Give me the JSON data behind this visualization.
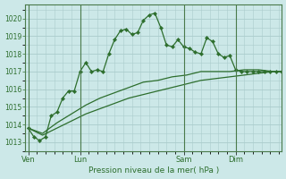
{
  "xlabel": "Pression niveau de la mer( hPa )",
  "bg_color": "#cce8e8",
  "grid_color": "#aacccc",
  "line_color": "#2d6e2d",
  "vline_color": "#4a7a4a",
  "ylim": [
    1012.5,
    1020.8
  ],
  "yticks": [
    1013,
    1014,
    1015,
    1016,
    1017,
    1018,
    1019,
    1020
  ],
  "x_tick_labels": [
    "Ven",
    "Lun",
    "Sam",
    "Dim"
  ],
  "x_tick_positions": [
    0,
    18,
    54,
    72
  ],
  "xlim": [
    -1,
    88
  ],
  "vlines": [
    0,
    18,
    54,
    72
  ],
  "series1_x": [
    0,
    2,
    4,
    6,
    8,
    10,
    12,
    14,
    16,
    18,
    20,
    22,
    24,
    26,
    28,
    30,
    32,
    34,
    36,
    38,
    40,
    42,
    44,
    46,
    48,
    50,
    52,
    54,
    56,
    58,
    60,
    62,
    64,
    66,
    68,
    70,
    72,
    74,
    76,
    78,
    80,
    82,
    84,
    86,
    88
  ],
  "series1_y": [
    1013.8,
    1013.3,
    1013.1,
    1013.3,
    1014.5,
    1014.7,
    1015.5,
    1015.9,
    1015.9,
    1017.0,
    1017.5,
    1017.0,
    1017.1,
    1017.0,
    1018.0,
    1018.8,
    1019.3,
    1019.4,
    1019.1,
    1019.2,
    1019.9,
    1020.2,
    1020.3,
    1019.5,
    1018.5,
    1018.4,
    1018.8,
    1018.4,
    1018.3,
    1018.1,
    1018.0,
    1018.9,
    1018.7,
    1018.0,
    1017.8,
    1017.9,
    1017.1,
    1017.0,
    1017.0,
    1017.0,
    1017.0,
    1017.0,
    1017.0,
    1017.0,
    1017.0
  ],
  "series2_x": [
    0,
    88
  ],
  "series2_y": [
    1013.8,
    1017.0
  ],
  "series3_x": [
    0,
    88
  ],
  "series3_y": [
    1013.8,
    1017.0
  ],
  "series2_pts": [
    0,
    5,
    10,
    15,
    20,
    25,
    30,
    35,
    40,
    45,
    50,
    55,
    60,
    65,
    70,
    75,
    80,
    85,
    88
  ],
  "series2_vals": [
    1013.8,
    1013.5,
    1014.1,
    1014.6,
    1015.1,
    1015.5,
    1015.8,
    1016.1,
    1016.4,
    1016.5,
    1016.7,
    1016.8,
    1017.0,
    1017.0,
    1017.0,
    1017.1,
    1017.1,
    1017.0,
    1017.0
  ],
  "series3_pts": [
    0,
    5,
    10,
    15,
    20,
    25,
    30,
    35,
    40,
    45,
    50,
    55,
    60,
    65,
    70,
    75,
    80,
    85,
    88
  ],
  "series3_vals": [
    1013.8,
    1013.4,
    1013.8,
    1014.2,
    1014.6,
    1014.9,
    1015.2,
    1015.5,
    1015.7,
    1015.9,
    1016.1,
    1016.3,
    1016.5,
    1016.6,
    1016.7,
    1016.8,
    1016.9,
    1017.0,
    1017.0
  ]
}
